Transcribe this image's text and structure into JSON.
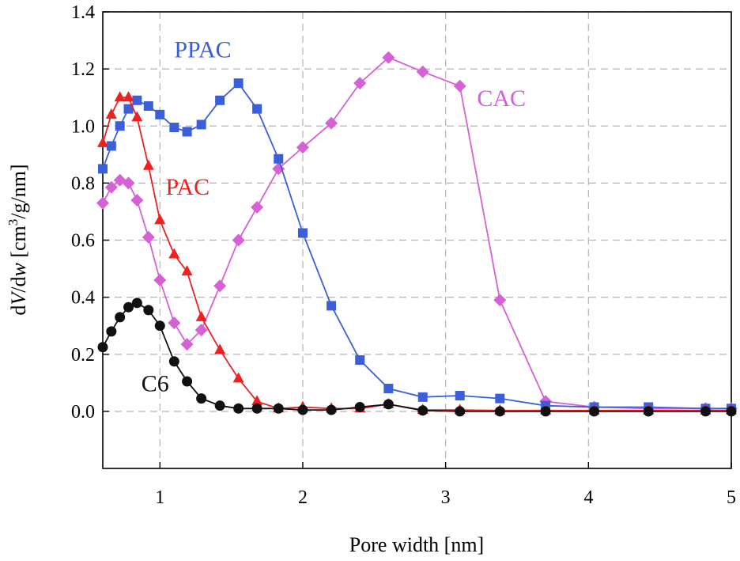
{
  "chart_data": {
    "type": "line",
    "title": "",
    "xlabel": "Pore width [nm]",
    "ylabel": {
      "prefix": "d",
      "v": "V",
      "slash": "/d",
      "w": "w",
      "open": " [cm",
      "sup": "3",
      "close": "/g/nm]"
    },
    "xlim": [
      0.6,
      5
    ],
    "ylim": [
      -0.2,
      1.4
    ],
    "xticks": [
      1,
      2,
      3,
      4,
      5
    ],
    "yticks": [
      "0.0",
      "0.2",
      "0.4",
      "0.6",
      "0.8",
      "1.0",
      "1.2",
      "1.4"
    ],
    "grid": true,
    "series": [
      {
        "name": "CAC",
        "color": "#d660d6",
        "marker": "diamond",
        "x": [
          0.6,
          0.66,
          0.72,
          0.78,
          0.84,
          0.92,
          1.0,
          1.1,
          1.19,
          1.29,
          1.42,
          1.55,
          1.68,
          1.83,
          2.0,
          2.2,
          2.4,
          2.6,
          2.84,
          3.1,
          3.38,
          3.7,
          4.04,
          4.42,
          4.82,
          5.0
        ],
        "y": [
          0.73,
          0.785,
          0.81,
          0.8,
          0.74,
          0.61,
          0.46,
          0.31,
          0.235,
          0.285,
          0.44,
          0.6,
          0.715,
          0.85,
          0.925,
          1.01,
          1.15,
          1.24,
          1.19,
          1.14,
          0.39,
          0.035,
          0.015,
          0.01,
          0.01,
          0.01
        ]
      },
      {
        "name": "PPAC",
        "color": "#3a5fd9",
        "marker": "square",
        "x": [
          0.6,
          0.66,
          0.72,
          0.78,
          0.84,
          0.92,
          1.0,
          1.1,
          1.19,
          1.29,
          1.42,
          1.55,
          1.68,
          1.83,
          2.0,
          2.2,
          2.4,
          2.6,
          2.84,
          3.1,
          3.38,
          3.7,
          4.04,
          4.42,
          4.82,
          5.0
        ],
        "y": [
          0.85,
          0.93,
          1.0,
          1.06,
          1.09,
          1.07,
          1.04,
          0.995,
          0.98,
          1.005,
          1.09,
          1.15,
          1.06,
          0.885,
          0.625,
          0.37,
          0.18,
          0.08,
          0.05,
          0.055,
          0.045,
          0.02,
          0.015,
          0.015,
          0.01,
          0.01
        ]
      },
      {
        "name": "PAC",
        "color": "#ee2020",
        "marker": "triangle",
        "x": [
          0.6,
          0.66,
          0.72,
          0.78,
          0.84,
          0.92,
          1.0,
          1.1,
          1.19,
          1.29,
          1.42,
          1.55,
          1.68,
          1.83,
          2.0,
          2.2,
          2.4,
          2.6,
          2.84,
          3.1,
          3.38,
          3.7,
          4.04,
          4.42,
          4.82,
          5.0
        ],
        "y": [
          0.94,
          1.04,
          1.1,
          1.1,
          1.03,
          0.86,
          0.67,
          0.55,
          0.49,
          0.33,
          0.215,
          0.115,
          0.035,
          0.01,
          0.015,
          0.01,
          0.01,
          0.025,
          0.005,
          0.005,
          0.003,
          0.003,
          0.003,
          0.003,
          0.003,
          0.003
        ]
      },
      {
        "name": "C6",
        "color": "#111111",
        "marker": "circle",
        "x": [
          0.6,
          0.66,
          0.72,
          0.78,
          0.84,
          0.92,
          1.0,
          1.1,
          1.19,
          1.29,
          1.42,
          1.55,
          1.68,
          1.83,
          2.0,
          2.2,
          2.4,
          2.6,
          2.84,
          3.1,
          3.38,
          3.7,
          4.04,
          4.42,
          4.82,
          5.0
        ],
        "y": [
          0.225,
          0.28,
          0.33,
          0.365,
          0.38,
          0.355,
          0.3,
          0.175,
          0.105,
          0.045,
          0.02,
          0.01,
          0.01,
          0.01,
          0.005,
          0.005,
          0.015,
          0.025,
          0.003,
          0.0,
          0.0,
          0.0,
          0.0,
          0.0,
          0.0,
          0.0
        ]
      }
    ],
    "annotations": [
      {
        "text": "PPAC",
        "x": 1.1,
        "y": 1.24,
        "color": "#3a5fd9"
      },
      {
        "text": "CAC",
        "x": 3.22,
        "y": 1.07,
        "color": "#d660d6"
      },
      {
        "text": "PAC",
        "x": 1.04,
        "y": 0.76,
        "color": "#ee2020"
      },
      {
        "text": "C6",
        "x": 0.87,
        "y": 0.07,
        "color": "#111111"
      }
    ]
  }
}
